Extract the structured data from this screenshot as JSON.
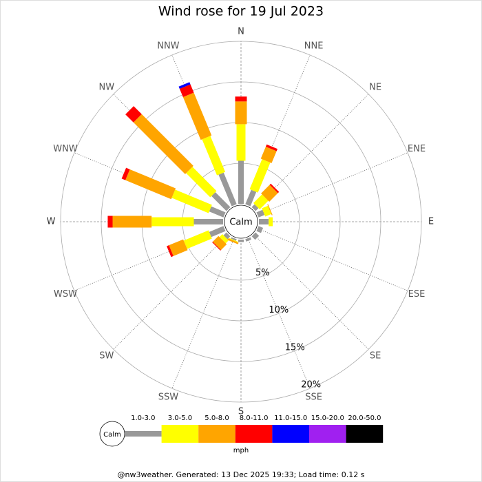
{
  "chart_data": {
    "type": "windrose",
    "title": "Wind rose for 19 Jul 2023",
    "directions": [
      "N",
      "NNE",
      "NE",
      "ENE",
      "E",
      "ESE",
      "SE",
      "SSE",
      "S",
      "SSW",
      "SW",
      "WSW",
      "W",
      "WNW",
      "NW",
      "NNW"
    ],
    "calm_label": "Calm",
    "rlim": [
      0,
      20
    ],
    "rticks": [
      {
        "value": 5,
        "label": "5%"
      },
      {
        "value": 10,
        "label": "10%"
      },
      {
        "value": 15,
        "label": "15%"
      },
      {
        "value": 20,
        "label": "20%"
      }
    ],
    "series": [
      {
        "name": "1.0-3.0",
        "color": "#999999",
        "values": [
          5.3,
          1.9,
          0.5,
          0.8,
          1.2,
          0.6,
          0.6,
          0.3,
          0.3,
          0.2,
          0.5,
          1.9,
          3.6,
          1.9,
          2.6,
          4.2
        ]
      },
      {
        "name": "3.0-5.0",
        "color": "#ffff00",
        "values": [
          4.5,
          4.0,
          1.5,
          0.8,
          0.5,
          0,
          0,
          0,
          0,
          0.1,
          0.5,
          3.3,
          5.2,
          4.9,
          4.2,
          4.8
        ]
      },
      {
        "name": "5.0-8.0",
        "color": "#ffa500",
        "values": [
          2.8,
          1.6,
          1.5,
          0.1,
          0,
          0,
          0,
          0,
          0,
          0.2,
          1.0,
          1.9,
          4.8,
          6.1,
          9.0,
          5.7
        ]
      },
      {
        "name": "8.0-11.0",
        "color": "#ff0000",
        "values": [
          0.6,
          0.3,
          0.2,
          0,
          0,
          0,
          0,
          0,
          0,
          0,
          0.1,
          0.3,
          0.6,
          0.5,
          1.4,
          1.1
        ]
      },
      {
        "name": "11.0-15.0",
        "color": "#0000ff",
        "values": [
          0,
          0,
          0,
          0,
          0,
          0,
          0,
          0,
          0,
          0,
          0,
          0,
          0,
          0,
          0,
          0.3
        ]
      },
      {
        "name": "15.0-20.0",
        "color": "#a020f0",
        "values": [
          0,
          0,
          0,
          0,
          0,
          0,
          0,
          0,
          0,
          0,
          0,
          0,
          0,
          0,
          0,
          0
        ]
      },
      {
        "name": "20.0-50.0",
        "color": "#000000",
        "values": [
          0,
          0,
          0,
          0,
          0,
          0,
          0,
          0,
          0,
          0,
          0,
          0,
          0,
          0,
          0,
          0
        ]
      }
    ],
    "legend_unit": "mph",
    "footer": "@nw3weather. Generated: 13 Dec 2025 19:33; Load time: 0.12 s"
  }
}
